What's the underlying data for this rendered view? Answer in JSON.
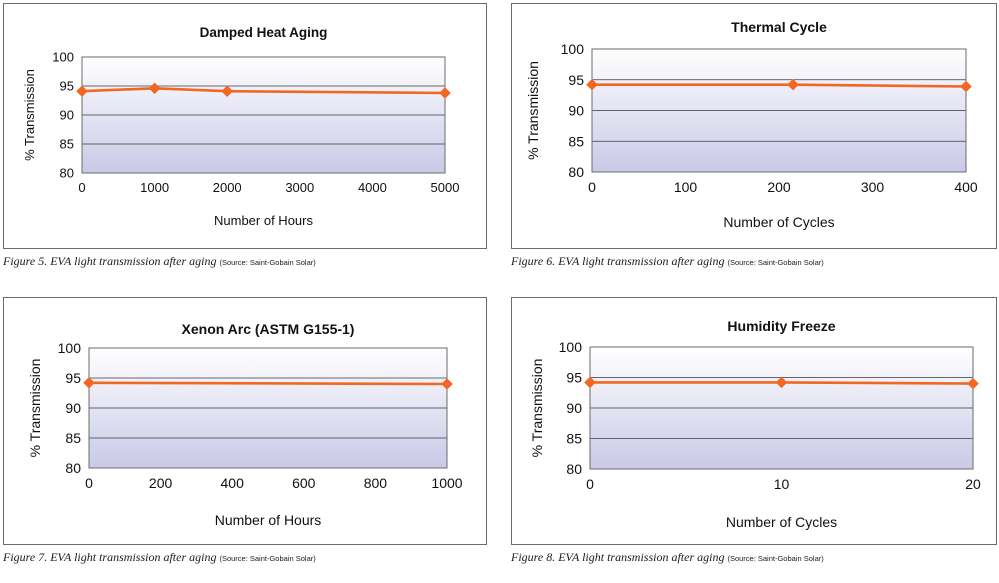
{
  "charts": [
    {
      "caption": "Figure 5. EVA light transmission after aging",
      "caption_source": "(Source: Saint-Gobain Solar)",
      "chart_data": {
        "type": "line",
        "title": "Damped Heat Aging",
        "xlabel": "Number of Hours",
        "ylabel": "% Transmission",
        "xlim": [
          0,
          5000
        ],
        "ylim": [
          80,
          100
        ],
        "xticks": [
          0,
          1000,
          2000,
          3000,
          4000,
          5000
        ],
        "yticks": [
          80,
          85,
          90,
          95,
          100
        ],
        "grid": "horizontal",
        "series": [
          {
            "x": [
              0,
              1000,
              2000,
              5000
            ],
            "y": [
              94.1,
              94.6,
              94.1,
              93.8
            ]
          }
        ]
      }
    },
    {
      "caption": "Figure 6. EVA light transmission after aging",
      "caption_source": "(Source: Saint-Gobain Solar)",
      "chart_data": {
        "type": "line",
        "title": "Thermal Cycle",
        "xlabel": "Number of Cycles",
        "ylabel": "% Transmission",
        "xlim": [
          0,
          400
        ],
        "ylim": [
          80,
          100
        ],
        "xticks": [
          0,
          100,
          200,
          300,
          400
        ],
        "yticks": [
          80,
          85,
          90,
          95,
          100
        ],
        "grid": "horizontal",
        "series": [
          {
            "x": [
              0,
              215,
              400
            ],
            "y": [
              94.2,
              94.2,
              93.9
            ]
          }
        ]
      }
    },
    {
      "caption": "Figure 7. EVA light transmission after aging",
      "caption_source": "(Source: Saint-Gobain Solar)",
      "chart_data": {
        "type": "line",
        "title": "Xenon Arc (ASTM G155-1)",
        "xlabel": "Number of Hours",
        "ylabel": "% Transmission",
        "xlim": [
          0,
          1000
        ],
        "ylim": [
          80,
          100
        ],
        "xticks": [
          0,
          200,
          400,
          600,
          800,
          1000
        ],
        "yticks": [
          80,
          85,
          90,
          95,
          100
        ],
        "grid": "horizontal",
        "series": [
          {
            "x": [
              0,
              1000
            ],
            "y": [
              94.2,
              94.0
            ]
          }
        ]
      }
    },
    {
      "caption": "Figure 8. EVA light transmission after aging",
      "caption_source": "(Source: Saint-Gobain Solar)",
      "chart_data": {
        "type": "line",
        "title": "Humidity Freeze",
        "xlabel": "Number of Cycles",
        "ylabel": "% Transmission",
        "xlim": [
          0,
          20
        ],
        "ylim": [
          80,
          100
        ],
        "xticks": [
          0,
          10,
          20
        ],
        "yticks": [
          80,
          85,
          90,
          95,
          100
        ],
        "grid": "horizontal",
        "series": [
          {
            "x": [
              0,
              10,
              20
            ],
            "y": [
              94.2,
              94.2,
              94.0
            ]
          }
        ]
      }
    }
  ],
  "style": {
    "line_color": "#f26722",
    "marker_color": "#f26722",
    "plot_gradient_top": "#ffffff",
    "plot_gradient_bottom": "#c9c9e8",
    "gridline_color": "#3a3a3a",
    "frame_color": "#6b6b6b"
  }
}
